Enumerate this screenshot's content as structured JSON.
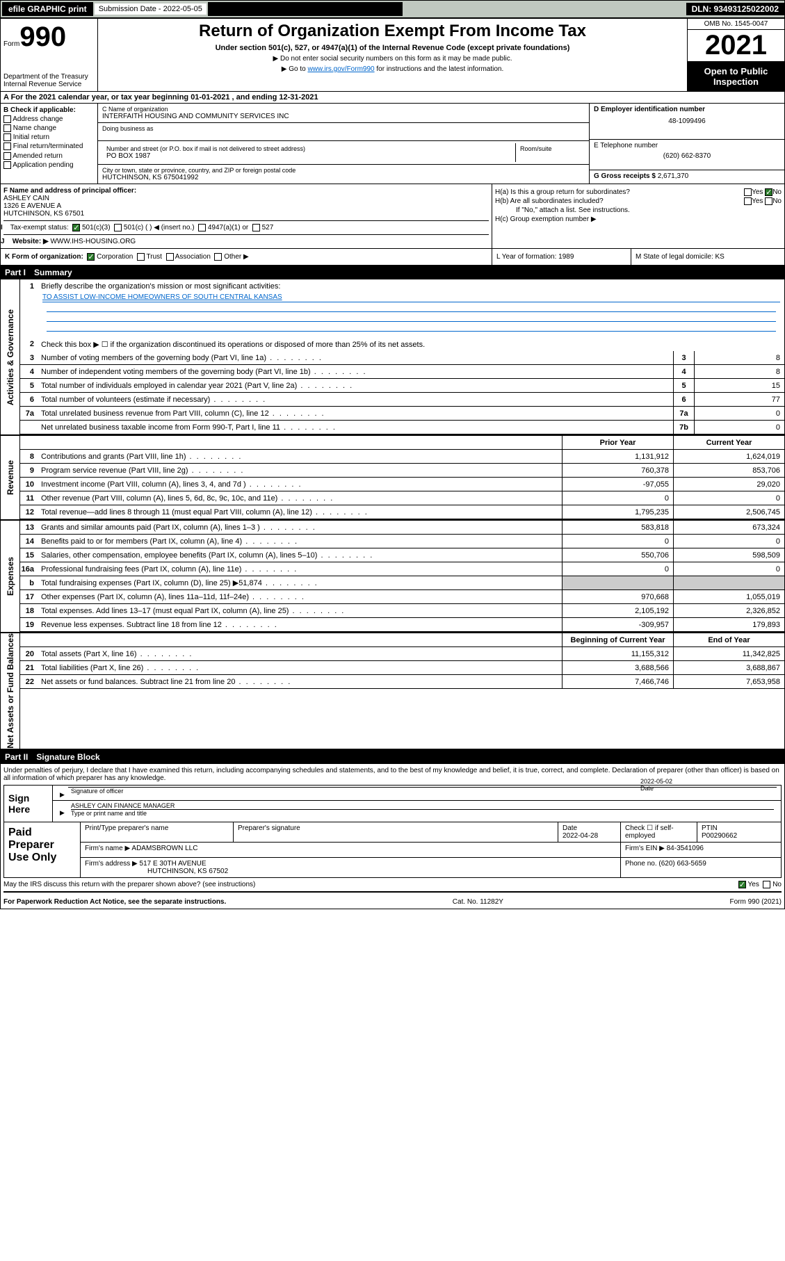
{
  "topbar": {
    "efile": "efile GRAPHIC print",
    "submission_label": "Submission Date - 2022-05-05",
    "dln": "DLN: 93493125022002"
  },
  "header": {
    "form_label": "Form",
    "form_num": "990",
    "dept": "Department of the Treasury",
    "irs": "Internal Revenue Service",
    "title": "Return of Organization Exempt From Income Tax",
    "sub1": "Under section 501(c), 527, or 4947(a)(1) of the Internal Revenue Code (except private foundations)",
    "sub2": "▶ Do not enter social security numbers on this form as it may be made public.",
    "sub3_pre": "▶ Go to ",
    "sub3_link": "www.irs.gov/Form990",
    "sub3_post": " for instructions and the latest information.",
    "omb": "OMB No. 1545-0047",
    "year": "2021",
    "open": "Open to Public Inspection"
  },
  "row_a": "A For the 2021 calendar year, or tax year beginning 01-01-2021   , and ending 12-31-2021",
  "col_b": {
    "title": "B Check if applicable:",
    "items": [
      "Address change",
      "Name change",
      "Initial return",
      "Final return/terminated",
      "Amended return",
      "Application pending"
    ]
  },
  "col_c": {
    "name_label": "C Name of organization",
    "name": "INTERFAITH HOUSING AND COMMUNITY SERVICES INC",
    "dba_label": "Doing business as",
    "addr_label": "Number and street (or P.O. box if mail is not delivered to street address)",
    "addr": "PO BOX 1987",
    "room_label": "Room/suite",
    "city_label": "City or town, state or province, country, and ZIP or foreign postal code",
    "city": "HUTCHINSON, KS  675041992"
  },
  "col_de": {
    "d_label": "D Employer identification number",
    "d": "48-1099496",
    "e_label": "E Telephone number",
    "e": "(620) 662-8370",
    "g_label": "G Gross receipts $",
    "g": "2,671,370"
  },
  "row_f": {
    "label": "F Name and address of principal officer:",
    "name": "ASHLEY CAIN",
    "addr1": "1326 E AVENUE A",
    "addr2": "HUTCHINSON, KS  67501"
  },
  "row_h": {
    "ha": "H(a)  Is this a group return for subordinates?",
    "hb": "H(b)  Are all subordinates included?",
    "hb_note": "If \"No,\" attach a list. See instructions.",
    "hc": "H(c)  Group exemption number ▶",
    "yes": "Yes",
    "no": "No"
  },
  "row_i": {
    "label": "Tax-exempt status:",
    "opts": [
      "501(c)(3)",
      "501(c) (  ) ◀ (insert no.)",
      "4947(a)(1) or",
      "527"
    ]
  },
  "row_j": {
    "label": "Website: ▶",
    "val": "WWW.IHS-HOUSING.ORG"
  },
  "row_k": {
    "label": "K Form of organization:",
    "opts": [
      "Corporation",
      "Trust",
      "Association",
      "Other ▶"
    ],
    "l": "L Year of formation: 1989",
    "m": "M State of legal domicile: KS"
  },
  "part1": {
    "title": "Part I",
    "sub": "Summary"
  },
  "summary": {
    "q1": "Briefly describe the organization's mission or most significant activities:",
    "q1_val": "TO ASSIST LOW-INCOME HOMEOWNERS OF SOUTH CENTRAL KANSAS",
    "q2": "Check this box ▶ ☐  if the organization discontinued its operations or disposed of more than 25% of its net assets.",
    "rows_gov": [
      {
        "n": "3",
        "label": "Number of voting members of the governing body (Part VI, line 1a)",
        "box": "3",
        "val": "8"
      },
      {
        "n": "4",
        "label": "Number of independent voting members of the governing body (Part VI, line 1b)",
        "box": "4",
        "val": "8"
      },
      {
        "n": "5",
        "label": "Total number of individuals employed in calendar year 2021 (Part V, line 2a)",
        "box": "5",
        "val": "15"
      },
      {
        "n": "6",
        "label": "Total number of volunteers (estimate if necessary)",
        "box": "6",
        "val": "77"
      },
      {
        "n": "7a",
        "label": "Total unrelated business revenue from Part VIII, column (C), line 12",
        "box": "7a",
        "val": "0"
      },
      {
        "n": "",
        "label": "Net unrelated business taxable income from Form 990-T, Part I, line 11",
        "box": "7b",
        "val": "0"
      }
    ],
    "hdr_prior": "Prior Year",
    "hdr_curr": "Current Year",
    "rows_rev": [
      {
        "n": "8",
        "label": "Contributions and grants (Part VIII, line 1h)",
        "p": "1,131,912",
        "c": "1,624,019"
      },
      {
        "n": "9",
        "label": "Program service revenue (Part VIII, line 2g)",
        "p": "760,378",
        "c": "853,706"
      },
      {
        "n": "10",
        "label": "Investment income (Part VIII, column (A), lines 3, 4, and 7d )",
        "p": "-97,055",
        "c": "29,020"
      },
      {
        "n": "11",
        "label": "Other revenue (Part VIII, column (A), lines 5, 6d, 8c, 9c, 10c, and 11e)",
        "p": "0",
        "c": "0"
      },
      {
        "n": "12",
        "label": "Total revenue—add lines 8 through 11 (must equal Part VIII, column (A), line 12)",
        "p": "1,795,235",
        "c": "2,506,745"
      }
    ],
    "rows_exp": [
      {
        "n": "13",
        "label": "Grants and similar amounts paid (Part IX, column (A), lines 1–3 )",
        "p": "583,818",
        "c": "673,324"
      },
      {
        "n": "14",
        "label": "Benefits paid to or for members (Part IX, column (A), line 4)",
        "p": "0",
        "c": "0"
      },
      {
        "n": "15",
        "label": "Salaries, other compensation, employee benefits (Part IX, column (A), lines 5–10)",
        "p": "550,706",
        "c": "598,509"
      },
      {
        "n": "16a",
        "label": "Professional fundraising fees (Part IX, column (A), line 11e)",
        "p": "0",
        "c": "0"
      },
      {
        "n": "b",
        "label": "Total fundraising expenses (Part IX, column (D), line 25) ▶51,874",
        "p": "",
        "c": "",
        "shaded": true
      },
      {
        "n": "17",
        "label": "Other expenses (Part IX, column (A), lines 11a–11d, 11f–24e)",
        "p": "970,668",
        "c": "1,055,019"
      },
      {
        "n": "18",
        "label": "Total expenses. Add lines 13–17 (must equal Part IX, column (A), line 25)",
        "p": "2,105,192",
        "c": "2,326,852"
      },
      {
        "n": "19",
        "label": "Revenue less expenses. Subtract line 18 from line 12",
        "p": "-309,957",
        "c": "179,893"
      }
    ],
    "hdr_beg": "Beginning of Current Year",
    "hdr_end": "End of Year",
    "rows_net": [
      {
        "n": "20",
        "label": "Total assets (Part X, line 16)",
        "p": "11,155,312",
        "c": "11,342,825"
      },
      {
        "n": "21",
        "label": "Total liabilities (Part X, line 26)",
        "p": "3,688,566",
        "c": "3,688,867"
      },
      {
        "n": "22",
        "label": "Net assets or fund balances. Subtract line 21 from line 20",
        "p": "7,466,746",
        "c": "7,653,958"
      }
    ],
    "tab_gov": "Activities & Governance",
    "tab_rev": "Revenue",
    "tab_exp": "Expenses",
    "tab_net": "Net Assets or Fund Balances"
  },
  "part2": {
    "title": "Part II",
    "sub": "Signature Block"
  },
  "sig": {
    "decl": "Under penalties of perjury, I declare that I have examined this return, including accompanying schedules and statements, and to the best of my knowledge and belief, it is true, correct, and complete. Declaration of preparer (other than officer) is based on all information of which preparer has any knowledge.",
    "sign_here": "Sign Here",
    "sig_officer": "Signature of officer",
    "date": "Date",
    "date_val": "2022-05-02",
    "name_title": "ASHLEY CAIN FINANCE MANAGER",
    "type_name": "Type or print name and title"
  },
  "paid": {
    "title": "Paid Preparer Use Only",
    "h1": "Print/Type preparer's name",
    "h2": "Preparer's signature",
    "h3": "Date",
    "h3v": "2022-04-28",
    "h4": "Check ☐ if self-employed",
    "h5": "PTIN",
    "h5v": "P00290662",
    "firm_name_l": "Firm's name    ▶",
    "firm_name": "ADAMSBROWN LLC",
    "firm_ein_l": "Firm's EIN ▶",
    "firm_ein": "84-3541096",
    "firm_addr_l": "Firm's address ▶",
    "firm_addr1": "517 E 30TH AVENUE",
    "firm_addr2": "HUTCHINSON, KS  67502",
    "phone_l": "Phone no.",
    "phone": "(620) 663-5659"
  },
  "footer": {
    "discuss": "May the IRS discuss this return with the preparer shown above? (see instructions)",
    "yes": "Yes",
    "no": "No",
    "pra": "For Paperwork Reduction Act Notice, see the separate instructions.",
    "cat": "Cat. No. 11282Y",
    "form": "Form 990 (2021)"
  },
  "colors": {
    "link": "#0066cc",
    "checked": "#2a7a2a"
  }
}
